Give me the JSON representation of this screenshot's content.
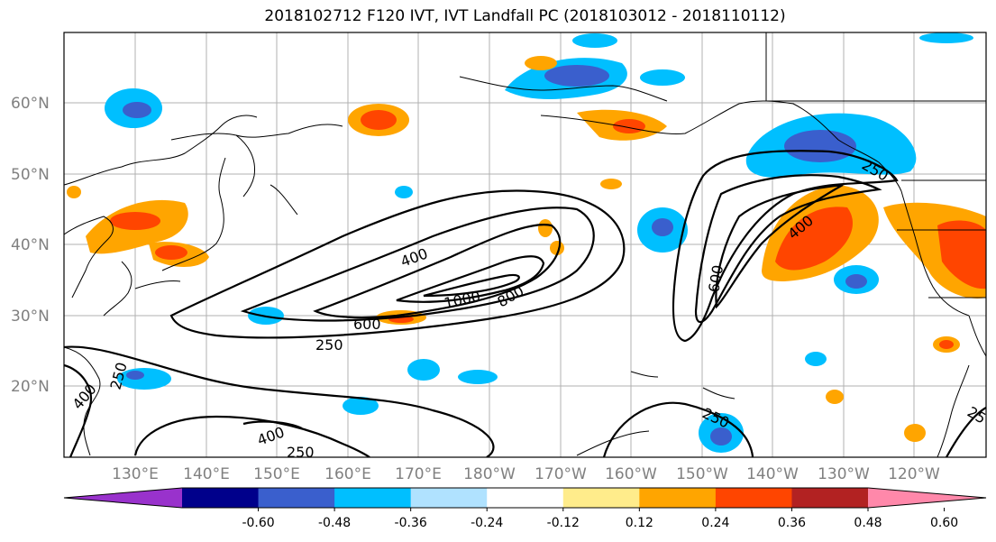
{
  "title": "2018102712 F120 IVT, IVT Landfall PC (2018103012 - 2018110112)",
  "lat_labels": [
    "60°N",
    "50°N",
    "40°N",
    "30°N",
    "20°N"
  ],
  "lon_labels": [
    "130°E",
    "140°E",
    "150°E",
    "160°E",
    "170°E",
    "180°W",
    "170°W",
    "160°W",
    "150°W",
    "140°W",
    "130°W",
    "120°W"
  ],
  "contour_labels": [
    "400",
    "1000",
    "800",
    "600",
    "250",
    "600",
    "400",
    "250",
    "250",
    "400",
    "250",
    "400",
    "250",
    "25"
  ],
  "colorbar": {
    "ticks": [
      "-0.60",
      "-0.48",
      "-0.36",
      "-0.24",
      "-0.12",
      "0.12",
      "0.24",
      "0.36",
      "0.48",
      "0.60"
    ],
    "colors": [
      "#9932cc",
      "#00008b",
      "#3a5fcd",
      "#00bfff",
      "#b0e2ff",
      "#ffffff",
      "#ffec8b",
      "#ffa500",
      "#ff4500",
      "#b22222",
      "#ff88aa"
    ]
  },
  "colors": {
    "strong_negative": "#3a5fcd",
    "negative": "#00bfff",
    "weak_negative": "#b0e2ff",
    "weak_positive": "#ffec8b",
    "positive": "#ffa500",
    "strong_positive": "#ff4500"
  }
}
